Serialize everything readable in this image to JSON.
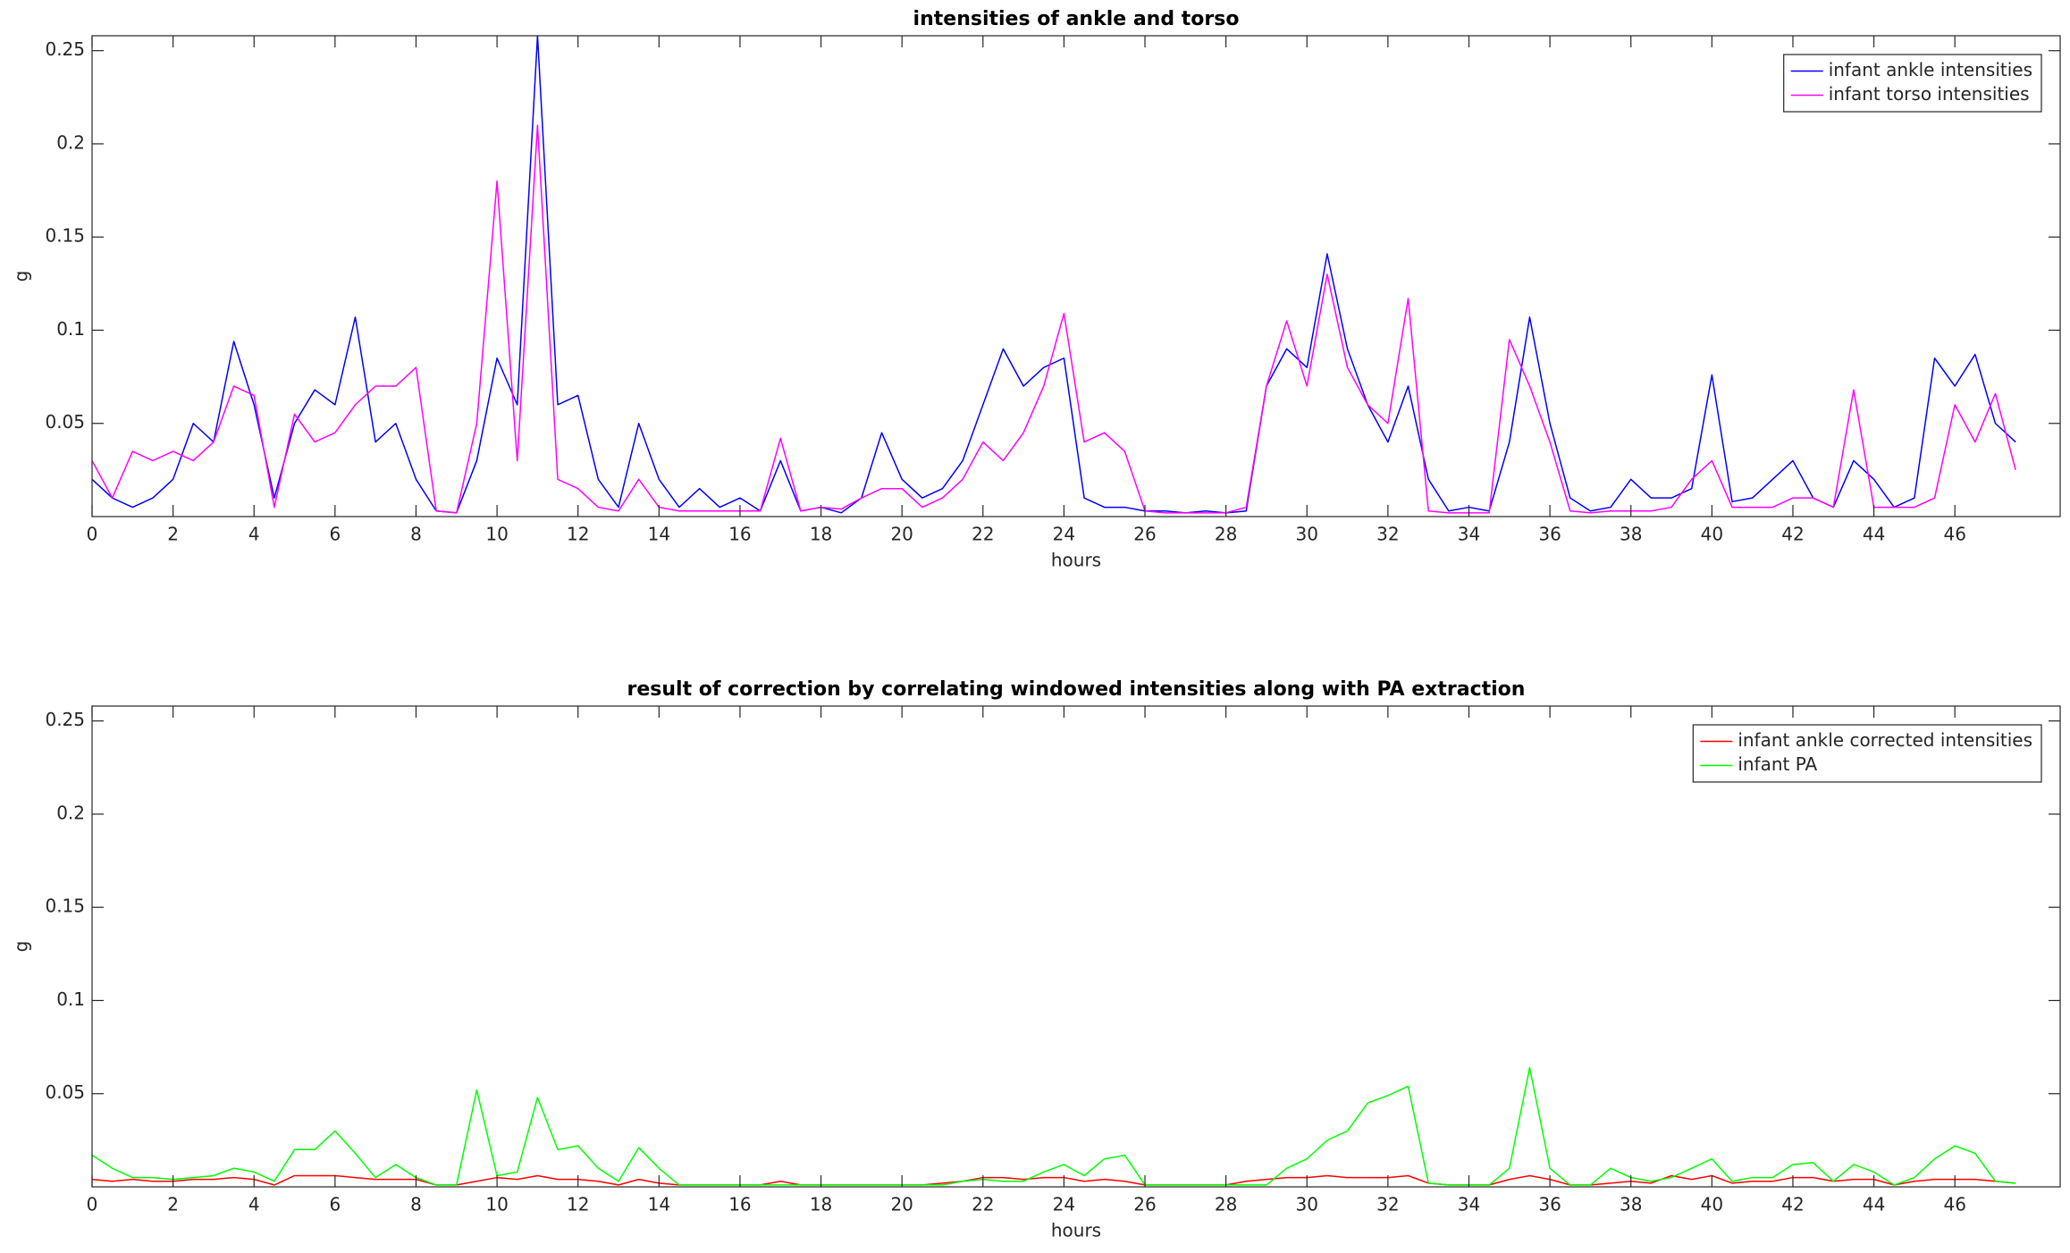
{
  "chart_data": [
    {
      "type": "line",
      "title": "intensities of ankle and torso",
      "xlabel": "hours",
      "ylabel": "g",
      "x": [
        0,
        0.5,
        1,
        1.5,
        2,
        2.5,
        3,
        3.5,
        4,
        4.5,
        5,
        5.5,
        6,
        6.5,
        7,
        7.5,
        8,
        8.5,
        9,
        9.5,
        10,
        10.5,
        11,
        11.5,
        12,
        12.5,
        13,
        13.5,
        14,
        14.5,
        15,
        15.5,
        16,
        16.5,
        17,
        17.5,
        18,
        18.5,
        19,
        19.5,
        20,
        20.5,
        21,
        21.5,
        22,
        22.5,
        23,
        23.5,
        24,
        24.5,
        25,
        25.5,
        26,
        26.5,
        27,
        27.5,
        28,
        28.5,
        29,
        29.5,
        30,
        30.5,
        31,
        31.5,
        32,
        32.5,
        33,
        33.5,
        34,
        34.5,
        35,
        35.5,
        36,
        36.5,
        37,
        37.5,
        38,
        38.5,
        39,
        39.5,
        40,
        40.5,
        41,
        41.5,
        42,
        42.5,
        43,
        43.5,
        44,
        44.5,
        45,
        45.5,
        46,
        46.5,
        47,
        47.5
      ],
      "series": [
        {
          "name": "infant ankle intensities",
          "color": "#0000ff",
          "values": [
            0.02,
            0.01,
            0.005,
            0.01,
            0.02,
            0.05,
            0.04,
            0.094,
            0.06,
            0.01,
            0.05,
            0.068,
            0.06,
            0.107,
            0.04,
            0.05,
            0.02,
            0.003,
            0.002,
            0.03,
            0.085,
            0.06,
            0.258,
            0.06,
            0.065,
            0.02,
            0.005,
            0.05,
            0.02,
            0.005,
            0.015,
            0.005,
            0.01,
            0.003,
            0.03,
            0.003,
            0.005,
            0.002,
            0.01,
            0.045,
            0.02,
            0.01,
            0.015,
            0.03,
            0.06,
            0.09,
            0.07,
            0.08,
            0.085,
            0.01,
            0.005,
            0.005,
            0.003,
            0.003,
            0.002,
            0.003,
            0.002,
            0.003,
            0.07,
            0.09,
            0.08,
            0.141,
            0.09,
            0.06,
            0.04,
            0.07,
            0.02,
            0.003,
            0.005,
            0.003,
            0.04,
            0.107,
            0.05,
            0.01,
            0.003,
            0.005,
            0.02,
            0.01,
            0.01,
            0.015,
            0.076,
            0.008,
            0.01,
            0.02,
            0.03,
            0.01,
            0.005,
            0.03,
            0.02,
            0.005,
            0.01,
            0.085,
            0.07,
            0.087,
            0.05,
            0.04
          ]
        },
        {
          "name": "infant torso intensities",
          "color": "#ff00ff",
          "values": [
            0.03,
            0.01,
            0.035,
            0.03,
            0.035,
            0.03,
            0.04,
            0.07,
            0.065,
            0.005,
            0.055,
            0.04,
            0.045,
            0.06,
            0.07,
            0.07,
            0.08,
            0.003,
            0.002,
            0.05,
            0.18,
            0.03,
            0.21,
            0.02,
            0.015,
            0.005,
            0.003,
            0.02,
            0.005,
            0.003,
            0.003,
            0.003,
            0.003,
            0.003,
            0.042,
            0.003,
            0.005,
            0.004,
            0.01,
            0.015,
            0.015,
            0.005,
            0.01,
            0.02,
            0.04,
            0.03,
            0.045,
            0.07,
            0.109,
            0.04,
            0.045,
            0.035,
            0.003,
            0.002,
            0.002,
            0.002,
            0.002,
            0.005,
            0.07,
            0.105,
            0.07,
            0.13,
            0.08,
            0.06,
            0.05,
            0.117,
            0.003,
            0.002,
            0.002,
            0.002,
            0.095,
            0.07,
            0.04,
            0.003,
            0.002,
            0.003,
            0.003,
            0.003,
            0.005,
            0.02,
            0.03,
            0.005,
            0.005,
            0.005,
            0.01,
            0.01,
            0.005,
            0.068,
            0.005,
            0.005,
            0.005,
            0.01,
            0.06,
            0.04,
            0.066,
            0.025
          ]
        }
      ],
      "xlim": [
        0,
        48.6
      ],
      "ylim": [
        0,
        0.258
      ],
      "xticks": [
        0,
        2,
        4,
        6,
        8,
        10,
        12,
        14,
        16,
        18,
        20,
        22,
        24,
        26,
        28,
        30,
        32,
        34,
        36,
        38,
        40,
        42,
        44,
        46
      ],
      "yticks": [
        0.05,
        0.1,
        0.15,
        0.2,
        0.25
      ],
      "legend": "northeast"
    },
    {
      "type": "line",
      "title": "result of correction by correlating windowed intensities along with PA extraction",
      "xlabel": "hours",
      "ylabel": "g",
      "x": [
        0,
        0.5,
        1,
        1.5,
        2,
        2.5,
        3,
        3.5,
        4,
        4.5,
        5,
        5.5,
        6,
        6.5,
        7,
        7.5,
        8,
        8.5,
        9,
        9.5,
        10,
        10.5,
        11,
        11.5,
        12,
        12.5,
        13,
        13.5,
        14,
        14.5,
        15,
        15.5,
        16,
        16.5,
        17,
        17.5,
        18,
        18.5,
        19,
        19.5,
        20,
        20.5,
        21,
        21.5,
        22,
        22.5,
        23,
        23.5,
        24,
        24.5,
        25,
        25.5,
        26,
        26.5,
        27,
        27.5,
        28,
        28.5,
        29,
        29.5,
        30,
        30.5,
        31,
        31.5,
        32,
        32.5,
        33,
        33.5,
        34,
        34.5,
        35,
        35.5,
        36,
        36.5,
        37,
        37.5,
        38,
        38.5,
        39,
        39.5,
        40,
        40.5,
        41,
        41.5,
        42,
        42.5,
        43,
        43.5,
        44,
        44.5,
        45,
        45.5,
        46,
        46.5,
        47,
        47.5
      ],
      "series": [
        {
          "name": "infant ankle corrected intensities",
          "color": "#ff0000",
          "values": [
            0.004,
            0.003,
            0.004,
            0.003,
            0.003,
            0.004,
            0.004,
            0.005,
            0.004,
            0.001,
            0.006,
            0.006,
            0.006,
            0.005,
            0.004,
            0.004,
            0.004,
            0.001,
            0.001,
            0.003,
            0.005,
            0.004,
            0.006,
            0.004,
            0.004,
            0.003,
            0.001,
            0.004,
            0.002,
            0.001,
            0.001,
            0.001,
            0.001,
            0.001,
            0.003,
            0.001,
            0.001,
            0.001,
            0.001,
            0.001,
            0.001,
            0.001,
            0.002,
            0.003,
            0.005,
            0.005,
            0.004,
            0.005,
            0.005,
            0.003,
            0.004,
            0.003,
            0.001,
            0.001,
            0.001,
            0.001,
            0.001,
            0.003,
            0.004,
            0.005,
            0.005,
            0.006,
            0.005,
            0.005,
            0.005,
            0.006,
            0.002,
            0.001,
            0.001,
            0.001,
            0.004,
            0.006,
            0.004,
            0.001,
            0.001,
            0.002,
            0.003,
            0.002,
            0.006,
            0.004,
            0.006,
            0.002,
            0.003,
            0.003,
            0.005,
            0.005,
            0.003,
            0.004,
            0.004,
            0.001,
            0.003,
            0.004,
            0.004,
            0.004,
            0.003,
            0.002
          ]
        },
        {
          "name": "infant PA",
          "color": "#00ff00",
          "values": [
            0.017,
            0.01,
            0.005,
            0.005,
            0.004,
            0.005,
            0.006,
            0.01,
            0.008,
            0.003,
            0.02,
            0.02,
            0.03,
            0.018,
            0.005,
            0.012,
            0.005,
            0.001,
            0.001,
            0.052,
            0.006,
            0.008,
            0.048,
            0.02,
            0.022,
            0.01,
            0.003,
            0.021,
            0.01,
            0.001,
            0.001,
            0.001,
            0.001,
            0.001,
            0.001,
            0.001,
            0.001,
            0.001,
            0.001,
            0.001,
            0.001,
            0.001,
            0.001,
            0.003,
            0.004,
            0.003,
            0.003,
            0.008,
            0.012,
            0.006,
            0.015,
            0.017,
            0.001,
            0.001,
            0.001,
            0.001,
            0.001,
            0.001,
            0.001,
            0.01,
            0.015,
            0.025,
            0.03,
            0.045,
            0.049,
            0.054,
            0.002,
            0.001,
            0.001,
            0.001,
            0.01,
            0.064,
            0.01,
            0.001,
            0.001,
            0.01,
            0.005,
            0.003,
            0.005,
            0.01,
            0.015,
            0.003,
            0.005,
            0.005,
            0.012,
            0.013,
            0.003,
            0.012,
            0.008,
            0.001,
            0.005,
            0.015,
            0.022,
            0.018,
            0.003,
            0.002
          ]
        }
      ],
      "xlim": [
        0,
        48.6
      ],
      "ylim": [
        0,
        0.258
      ],
      "xticks": [
        0,
        2,
        4,
        6,
        8,
        10,
        12,
        14,
        16,
        18,
        20,
        22,
        24,
        26,
        28,
        30,
        32,
        34,
        36,
        38,
        40,
        42,
        44,
        46
      ],
      "yticks": [
        0.05,
        0.1,
        0.15,
        0.2,
        0.25
      ],
      "legend": "northeast"
    }
  ]
}
